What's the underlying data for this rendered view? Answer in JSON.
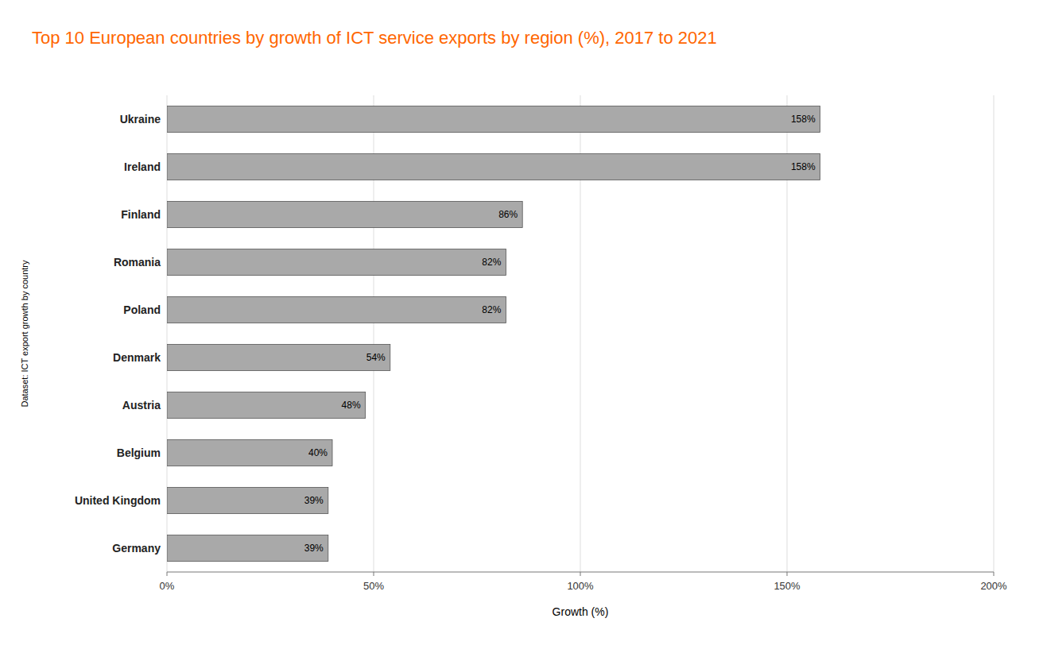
{
  "chart_data": {
    "type": "bar",
    "orientation": "horizontal",
    "title": "Top 10 European countries by growth of ICT service exports by region (%), 2017 to 2021",
    "x_label": "Growth (%)",
    "y_label": "Dataset: ICT export growth by country",
    "categories": [
      "Ukraine",
      "Ireland",
      "Finland",
      "Romania",
      "Poland",
      "Denmark",
      "Austria",
      "Belgium",
      "United Kingdom",
      "Germany"
    ],
    "values": [
      158,
      158,
      86,
      82,
      82,
      54,
      48,
      40,
      39,
      39
    ],
    "value_labels": [
      "158%",
      "158%",
      "86%",
      "82%",
      "82%",
      "54%",
      "48%",
      "40%",
      "39%",
      "39%"
    ],
    "data_labels": true,
    "color": "#A9A9A9",
    "xlim": [
      0,
      200
    ],
    "xticks": [
      {
        "value": 0,
        "label": "0%"
      },
      {
        "value": 50,
        "label": "50%"
      },
      {
        "value": 100,
        "label": "100%"
      },
      {
        "value": 150,
        "label": "150%"
      },
      {
        "value": 200,
        "label": "200%"
      }
    ],
    "grid": true
  }
}
